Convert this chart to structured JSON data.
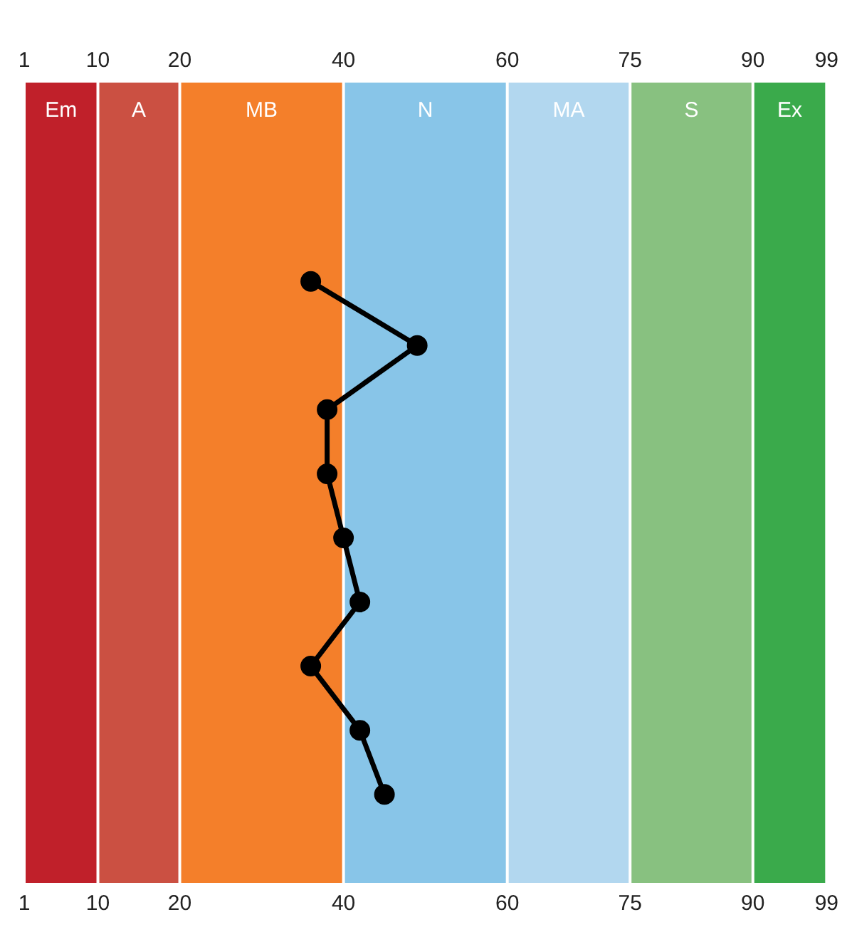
{
  "chart_data": {
    "type": "line",
    "orientation": "horizontal",
    "categories": [
      null,
      null,
      null,
      null,
      null,
      null,
      null,
      null,
      null
    ],
    "series": [
      {
        "color": "#000000",
        "values": [
          36,
          49,
          38,
          38,
          40,
          42,
          36,
          42,
          45
        ]
      }
    ],
    "marker": "circle",
    "xlim": [
      1,
      99
    ],
    "xticks": [
      1,
      10,
      20,
      40,
      60,
      75,
      90,
      99
    ],
    "x2lim": [
      1,
      99
    ],
    "x2ticks": [
      1,
      10,
      20,
      40,
      60,
      75,
      90,
      99
    ],
    "bands": [
      {
        "axis": "x",
        "from": 1,
        "to": 10,
        "label": "Em",
        "color": "#c0202a"
      },
      {
        "axis": "x",
        "from": 10,
        "to": 20,
        "label": "A",
        "color": "#cb5042"
      },
      {
        "axis": "x",
        "from": 20,
        "to": 40,
        "label": "MB",
        "color": "#f47f2a"
      },
      {
        "axis": "x",
        "from": 40,
        "to": 60,
        "label": "N",
        "color": "#88c5e8"
      },
      {
        "axis": "x",
        "from": 60,
        "to": 75,
        "label": "MA",
        "color": "#b2d7ef"
      },
      {
        "axis": "x",
        "from": 75,
        "to": 90,
        "label": "S",
        "color": "#88c180"
      },
      {
        "axis": "x",
        "from": 90,
        "to": 99,
        "label": "Ex",
        "color": "#3aaa4b"
      }
    ]
  }
}
